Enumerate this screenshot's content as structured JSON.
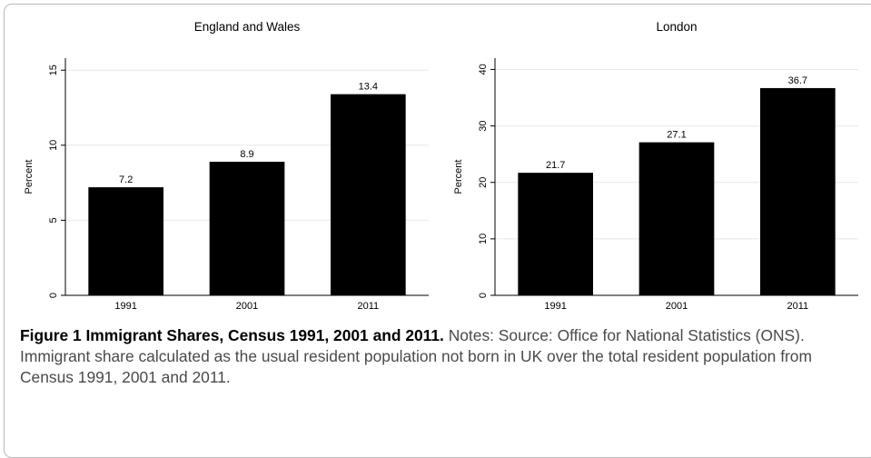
{
  "chart_data": [
    {
      "type": "bar",
      "title": "England and Wales",
      "ylabel": "Percent",
      "categories": [
        "1991",
        "2001",
        "2011"
      ],
      "values": [
        7.2,
        8.9,
        13.4
      ],
      "value_labels": [
        "7.2",
        "8.9",
        "13.4"
      ],
      "yticks": [
        0,
        5,
        10,
        15
      ],
      "ylim": [
        0,
        15.8
      ],
      "grid": true,
      "bar_color": "#000000",
      "grid_color": "#e8e8e8"
    },
    {
      "type": "bar",
      "title": "London",
      "ylabel": "Percent",
      "categories": [
        "1991",
        "2001",
        "2011"
      ],
      "values": [
        21.7,
        27.1,
        36.7
      ],
      "value_labels": [
        "21.7",
        "27.1",
        "36.7"
      ],
      "yticks": [
        0,
        10,
        20,
        30,
        40
      ],
      "ylim": [
        0,
        42
      ],
      "grid": true,
      "bar_color": "#000000",
      "grid_color": "#e8e8e8"
    }
  ],
  "caption": {
    "title": "Figure 1 Immigrant Shares, Census 1991, 2001 and 2011.",
    "notes": " Notes: Source: Office for National Statistics (ONS). Immigrant share calculated as the usual resident population not born in UK over the total resident population from Census 1991, 2001 and 2011."
  }
}
